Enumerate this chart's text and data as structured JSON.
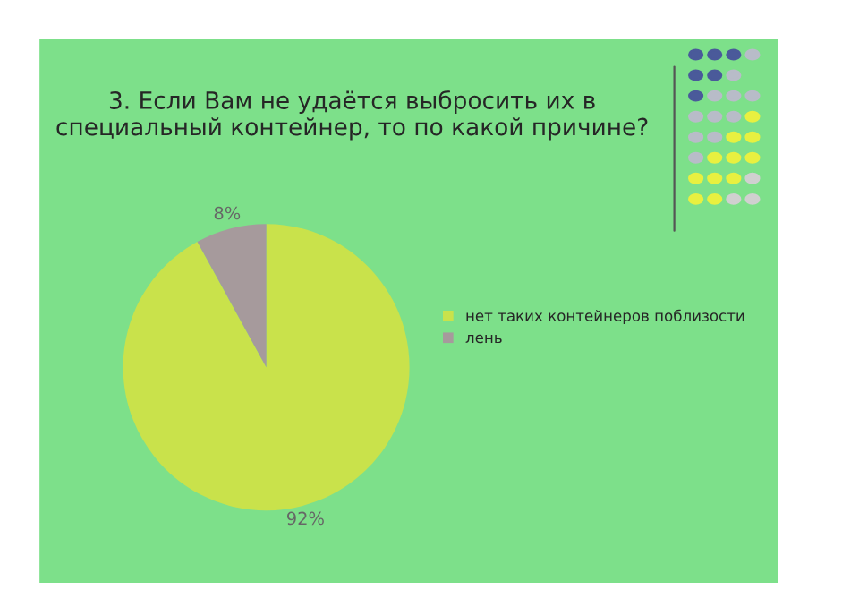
{
  "chart_data": {
    "type": "pie",
    "title": "3. Если Вам не удаётся выбросить их в\nспециальный контейнер, то по какой причине?",
    "categories": [
      "нет таких контейнеров поблизости",
      "лень"
    ],
    "values": [
      92,
      8
    ],
    "colors": [
      "#c9e24b",
      "#a69a9c"
    ],
    "value_labels": [
      "92%",
      "8%"
    ],
    "legend": "right"
  }
}
